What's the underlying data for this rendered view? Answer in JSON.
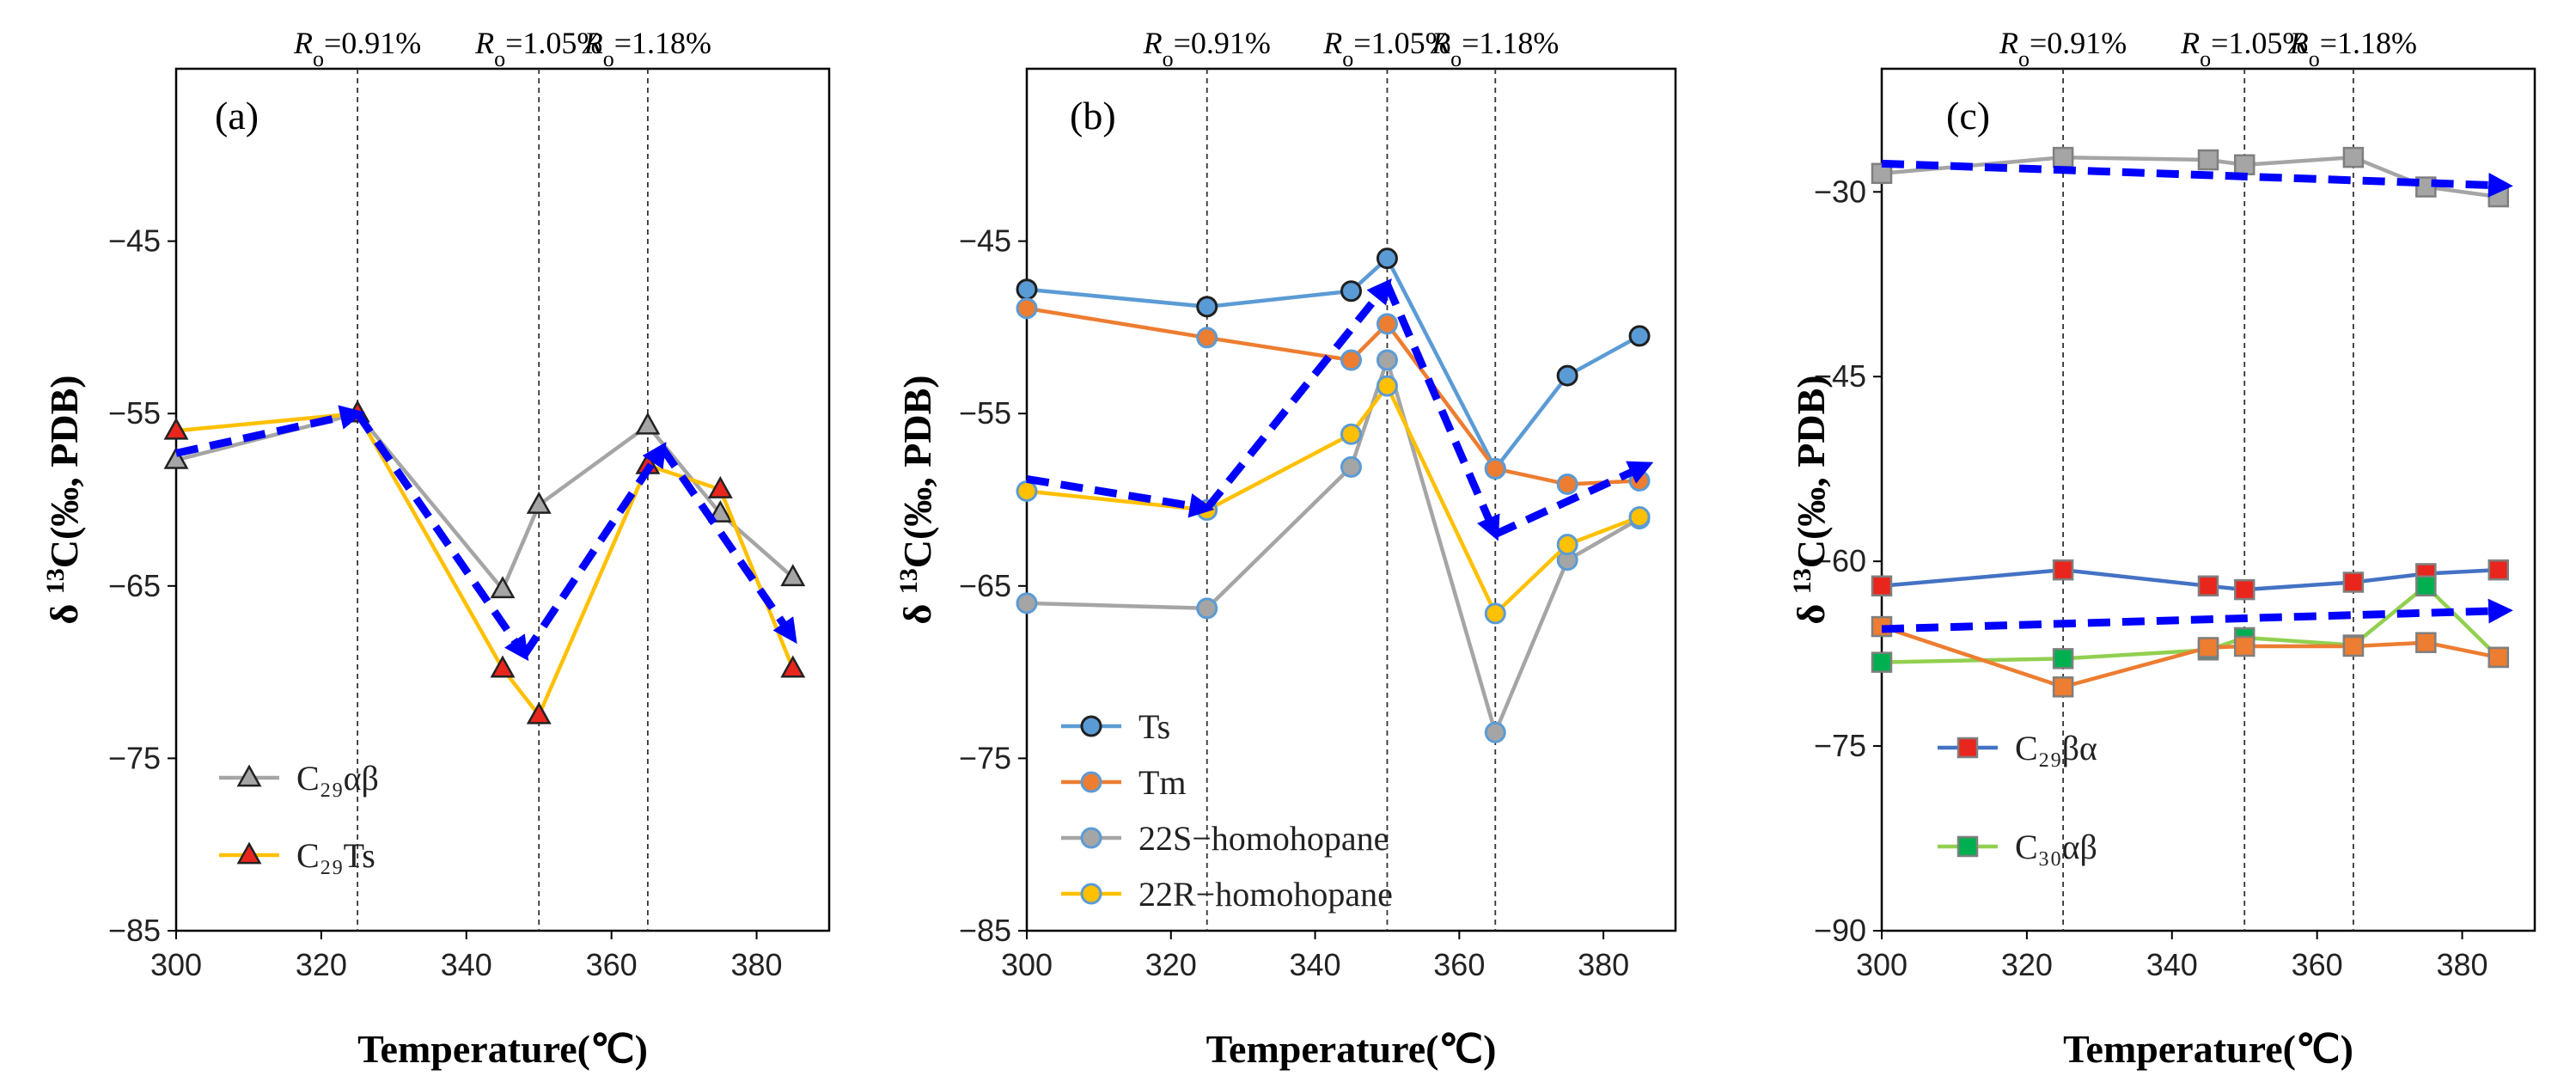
{
  "chart_data": [
    {
      "type": "line",
      "panel_label": "(a)",
      "xlabel": "Temperature(℃)",
      "ylabel": "δ 13C(‰, PDB)",
      "xlim": [
        300,
        390
      ],
      "ylim": [
        -85,
        -35
      ],
      "xticks": [
        300,
        320,
        340,
        360,
        380
      ],
      "yticks": [
        -45,
        -55,
        -65,
        -75,
        -85
      ],
      "ro_lines": [
        {
          "x": 325,
          "label": "Ro=0.91%"
        },
        {
          "x": 350,
          "label": "Ro=1.05%"
        },
        {
          "x": 365,
          "label": "Ro=1.18%"
        }
      ],
      "series": [
        {
          "name": "C₂₉αβ",
          "color": "#a5a5a5",
          "marker": "triangle",
          "marker_fill": "#a5a5a5",
          "x": [
            300,
            325,
            345,
            350,
            365,
            375,
            385
          ],
          "values": [
            -57.7,
            -55.0,
            -65.2,
            -60.3,
            -55.7,
            -60.8,
            -64.5
          ]
        },
        {
          "name": "C₂₉Ts",
          "color": "#ffc000",
          "marker": "triangle",
          "marker_fill": "#e8261e",
          "x": [
            300,
            325,
            345,
            350,
            365,
            375,
            385
          ],
          "values": [
            -56.0,
            -55.0,
            -69.8,
            -72.5,
            -58.0,
            -59.4,
            -69.8
          ]
        }
      ],
      "trend_arrows": [
        {
          "x": [
            300,
            325
          ],
          "y": [
            -57.3,
            -55.0
          ]
        },
        {
          "x": [
            325,
            348
          ],
          "y": [
            -55.0,
            -69.0
          ]
        },
        {
          "x": [
            348,
            367
          ],
          "y": [
            -69.0,
            -57.0
          ]
        },
        {
          "x": [
            367,
            385
          ],
          "y": [
            -57.0,
            -68.0
          ]
        }
      ],
      "legend_position": "bottom-left"
    },
    {
      "type": "line",
      "panel_label": "(b)",
      "xlabel": "Temperature(℃)",
      "ylabel": "δ 13C(‰, PDB)",
      "xlim": [
        300,
        390
      ],
      "ylim": [
        -85,
        -35
      ],
      "xticks": [
        300,
        320,
        340,
        360,
        380
      ],
      "yticks": [
        -45,
        -55,
        -65,
        -75,
        -85
      ],
      "ro_lines": [
        {
          "x": 325,
          "label": "Ro=0.91%"
        },
        {
          "x": 350,
          "label": "Ro=1.05%"
        },
        {
          "x": 365,
          "label": "Ro=1.18%"
        }
      ],
      "series": [
        {
          "name": "Ts",
          "color": "#5b9bd5",
          "marker": "circle",
          "marker_fill": "#5b9bd5",
          "marker_stroke": "#1f1f1f",
          "x": [
            300,
            325,
            345,
            350,
            365,
            375,
            385
          ],
          "values": [
            -47.8,
            -48.8,
            -47.9,
            -46.0,
            -58.2,
            -52.8,
            -50.5
          ]
        },
        {
          "name": "Tm",
          "color": "#ed7d31",
          "marker": "circle",
          "marker_fill": "#ed7d31",
          "marker_stroke": "#5b9bd5",
          "x": [
            300,
            325,
            345,
            350,
            365,
            375,
            385
          ],
          "values": [
            -48.9,
            -50.6,
            -51.9,
            -49.8,
            -58.2,
            -59.1,
            -58.9
          ]
        },
        {
          "name": "22S−homohopane",
          "color": "#a5a5a5",
          "marker": "circle",
          "marker_fill": "#a5a5a5",
          "marker_stroke": "#5b9bd5",
          "x": [
            300,
            325,
            345,
            350,
            365,
            375,
            385
          ],
          "values": [
            -66.0,
            -66.3,
            -58.1,
            -51.9,
            -73.5,
            -63.5,
            -61.1
          ]
        },
        {
          "name": "22R−homohopane",
          "color": "#ffc000",
          "marker": "circle",
          "marker_fill": "#ffc000",
          "marker_stroke": "#5b9bd5",
          "x": [
            300,
            325,
            345,
            350,
            365,
            375,
            385
          ],
          "values": [
            -59.5,
            -60.6,
            -56.2,
            -53.4,
            -66.6,
            -62.6,
            -61.0
          ]
        }
      ],
      "trend_arrows": [
        {
          "x": [
            300,
            325
          ],
          "y": [
            -58.8,
            -60.5
          ]
        },
        {
          "x": [
            325,
            350
          ],
          "y": [
            -60.5,
            -47.5
          ]
        },
        {
          "x": [
            350,
            365
          ],
          "y": [
            -47.5,
            -62.0
          ]
        },
        {
          "x": [
            365,
            386
          ],
          "y": [
            -62.0,
            -58.0
          ]
        }
      ],
      "legend_position": "bottom-left"
    },
    {
      "type": "line",
      "panel_label": "(c)",
      "xlabel": "Temperature(℃)",
      "ylabel": "δ 13C(‰, PDB)",
      "xlim": [
        300,
        390
      ],
      "ylim": [
        -90,
        -20
      ],
      "xticks": [
        300,
        320,
        340,
        360,
        380
      ],
      "yticks": [
        -30,
        -45,
        -60,
        -75,
        -90
      ],
      "ro_lines": [
        {
          "x": 325,
          "label": "Ro=0.91%"
        },
        {
          "x": 350,
          "label": "Ro=1.05%"
        },
        {
          "x": 365,
          "label": "Ro=1.18%"
        }
      ],
      "series": [
        {
          "name": "",
          "color": "#a5a5a5",
          "marker": "square",
          "marker_fill": "#a5a5a5",
          "x": [
            300,
            325,
            345,
            350,
            365,
            375,
            385
          ],
          "values": [
            -28.5,
            -27.2,
            -27.4,
            -27.8,
            -27.2,
            -29.6,
            -30.4
          ]
        },
        {
          "name": "C₂₉βα",
          "color": "#4472c4",
          "marker": "square",
          "marker_fill": "#e8261e",
          "x": [
            300,
            325,
            345,
            350,
            365,
            375,
            385
          ],
          "values": [
            -62.0,
            -60.7,
            -62.0,
            -62.3,
            -61.7,
            -61.0,
            -60.7
          ]
        },
        {
          "name": "C₃₀αβ",
          "color": "#92d050",
          "marker": "square",
          "marker_fill": "#00b050",
          "x": [
            300,
            325,
            345,
            350,
            365,
            375,
            385
          ],
          "values": [
            -68.2,
            -67.9,
            -67.2,
            -66.2,
            -66.8,
            -62.0,
            -67.8
          ]
        },
        {
          "name": "",
          "color": "#ed7d31",
          "marker": "square",
          "marker_fill": "#ed7d31",
          "x": [
            300,
            325,
            345,
            350,
            365,
            375,
            385
          ],
          "values": [
            -65.3,
            -70.2,
            -67.0,
            -66.9,
            -66.9,
            -66.6,
            -67.8
          ]
        }
      ],
      "trend_arrows": [
        {
          "x": [
            300,
            386
          ],
          "y": [
            -27.7,
            -29.5
          ]
        },
        {
          "x": [
            300,
            386
          ],
          "y": [
            -65.5,
            -64.0
          ]
        }
      ],
      "legend_position": "bottom-left"
    }
  ]
}
